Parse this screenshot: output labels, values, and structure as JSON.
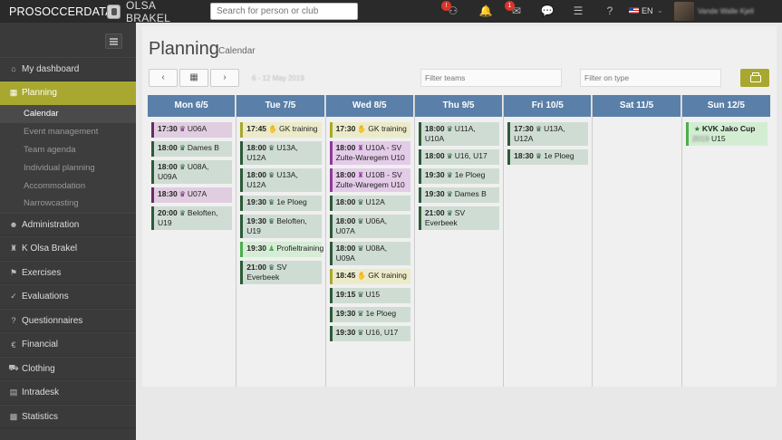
{
  "topbar": {
    "brand_pro": "PRO",
    "brand_rest": "SOCCERDATA",
    "club_name": "OLSA BRAKEL",
    "search_placeholder": "Search for person or club",
    "badge1": "!",
    "badge2": "1",
    "language": "EN",
    "user_name": "Vande Walle Kjell"
  },
  "sidebar": {
    "items": [
      {
        "label": "My dashboard",
        "icon": "home-icon"
      },
      {
        "label": "Planning",
        "icon": "calendar-icon",
        "active": true
      },
      {
        "label": "Administration",
        "icon": "user-icon"
      },
      {
        "label": "K Olsa Brakel",
        "icon": "club-icon"
      },
      {
        "label": "Exercises",
        "icon": "exercise-icon"
      },
      {
        "label": "Evaluations",
        "icon": "evaluation-icon"
      },
      {
        "label": "Questionnaires",
        "icon": "questionnaire-icon"
      },
      {
        "label": "Financial",
        "icon": "euro-icon"
      },
      {
        "label": "Clothing",
        "icon": "cart-icon"
      },
      {
        "label": "Intradesk",
        "icon": "desk-icon"
      },
      {
        "label": "Statistics",
        "icon": "chart-icon"
      }
    ],
    "planning_sub": [
      {
        "label": "Calendar",
        "active": true
      },
      {
        "label": "Event management"
      },
      {
        "label": "Team agenda"
      },
      {
        "label": "Individual planning"
      },
      {
        "label": "Accommodation"
      },
      {
        "label": "Narrowcasting"
      }
    ]
  },
  "main": {
    "title": "Planning",
    "subtitle": "Calendar",
    "date_range": "6 - 12 May 2019",
    "filter_teams_placeholder": "Filter teams",
    "filter_type_placeholder": "Filter on type",
    "prev_icon": "chevron-left-icon",
    "calendar_icon": "calendar-icon",
    "next_icon": "chevron-right-icon"
  },
  "days": [
    {
      "label": "Mon 6/5",
      "events": [
        {
          "time": "17:30",
          "text": "U06A",
          "kind": "purple"
        },
        {
          "time": "18:00",
          "text": "Dames B",
          "kind": "training"
        },
        {
          "time": "18:00",
          "text": "U08A, U09A",
          "kind": "training"
        },
        {
          "time": "18:30",
          "text": "U07A",
          "kind": "purple"
        },
        {
          "time": "20:00",
          "text": "Beloften, U19",
          "kind": "training"
        }
      ]
    },
    {
      "label": "Tue 7/5",
      "events": [
        {
          "time": "17:45",
          "text": "GK training",
          "kind": "gk"
        },
        {
          "time": "18:00",
          "text": "U13A, U12A",
          "kind": "training"
        },
        {
          "time": "18:00",
          "text": "U13A, U12A",
          "kind": "training"
        },
        {
          "time": "19:30",
          "text": "1e Ploeg",
          "kind": "training"
        },
        {
          "time": "19:30",
          "text": "Beloften, U19",
          "kind": "training"
        },
        {
          "time": "19:30",
          "text": "Profieltraining",
          "kind": "profile"
        },
        {
          "time": "21:00",
          "text": "SV Everbeek",
          "kind": "training"
        }
      ]
    },
    {
      "label": "Wed 8/5",
      "events": [
        {
          "time": "17:30",
          "text": "GK training",
          "kind": "gk"
        },
        {
          "time": "18:00",
          "text": "U10A - SV Zulte-Waregem U10",
          "kind": "match"
        },
        {
          "time": "18:00",
          "text": "U10B - SV Zulte-Waregem U10",
          "kind": "match"
        },
        {
          "time": "18:00",
          "text": "U12A",
          "kind": "training"
        },
        {
          "time": "18:00",
          "text": "U06A, U07A",
          "kind": "training"
        },
        {
          "time": "18:00",
          "text": "U08A, U09A",
          "kind": "training"
        },
        {
          "time": "18:45",
          "text": "GK training",
          "kind": "gk"
        },
        {
          "time": "19:15",
          "text": "U15",
          "kind": "training"
        },
        {
          "time": "19:30",
          "text": "1e Ploeg",
          "kind": "training"
        },
        {
          "time": "19:30",
          "text": "U16, U17",
          "kind": "training"
        }
      ]
    },
    {
      "label": "Thu 9/5",
      "events": [
        {
          "time": "18:00",
          "text": "U11A, U10A",
          "kind": "training"
        },
        {
          "time": "18:00",
          "text": "U16, U17",
          "kind": "training"
        },
        {
          "time": "19:30",
          "text": "1e Ploeg",
          "kind": "training"
        },
        {
          "time": "19:30",
          "text": "Dames B",
          "kind": "training"
        },
        {
          "time": "21:00",
          "text": "SV Everbeek",
          "kind": "training"
        }
      ]
    },
    {
      "label": "Fri 10/5",
      "events": [
        {
          "time": "17:30",
          "text": "U13A, U12A",
          "kind": "training"
        },
        {
          "time": "18:30",
          "text": "1e Ploeg",
          "kind": "training"
        }
      ]
    },
    {
      "label": "Sat 11/5",
      "events": []
    },
    {
      "label": "Sun 12/5",
      "events": [
        {
          "time": "",
          "text": "KVK Jako Cup",
          "kind": "cup",
          "blurred_prefix": "2019",
          "after": "U15"
        }
      ]
    }
  ]
}
